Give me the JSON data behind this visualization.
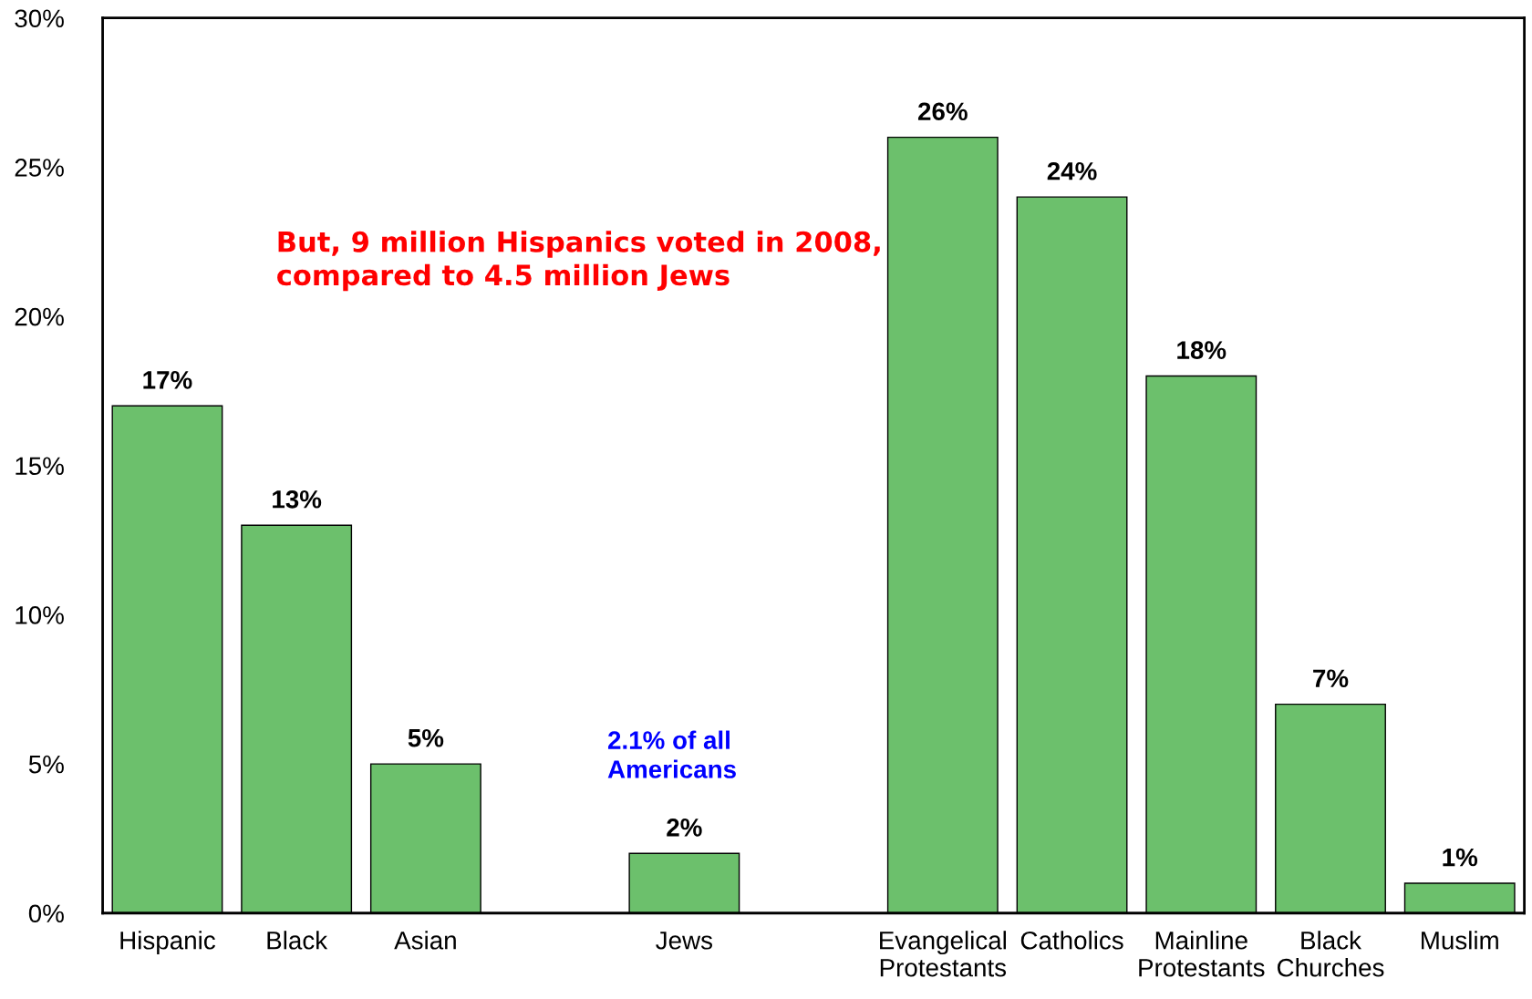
{
  "chart_data": {
    "type": "bar",
    "categories": [
      "Hispanic",
      "Black",
      "Asian",
      null,
      "Jews",
      null,
      "Evangelical\nProtestants",
      "Catholics",
      "Mainline\nProtestants",
      "Black\nChurches",
      "Muslim"
    ],
    "values": [
      17,
      13,
      5,
      null,
      2,
      null,
      26,
      24,
      18,
      7,
      1
    ],
    "value_labels": [
      "17%",
      "13%",
      "5%",
      null,
      "2%",
      null,
      "26%",
      "24%",
      "18%",
      "7%",
      "1%"
    ],
    "color": "#6cc06c",
    "ylim": [
      0,
      30
    ],
    "yticks": [
      {
        "value": 0,
        "label": "0%"
      },
      {
        "value": 5,
        "label": "5%"
      },
      {
        "value": 10,
        "label": "10%"
      },
      {
        "value": 15,
        "label": "15%"
      },
      {
        "value": 20,
        "label": "20%"
      },
      {
        "value": 25,
        "label": "25%"
      },
      {
        "value": 30,
        "label": "30%"
      }
    ],
    "grid": false,
    "annotations": [
      "But, 9 million Hispanics voted in 2008,\ncompared to 4.5 million Jews",
      "2.1% of all\nAmericans"
    ]
  }
}
